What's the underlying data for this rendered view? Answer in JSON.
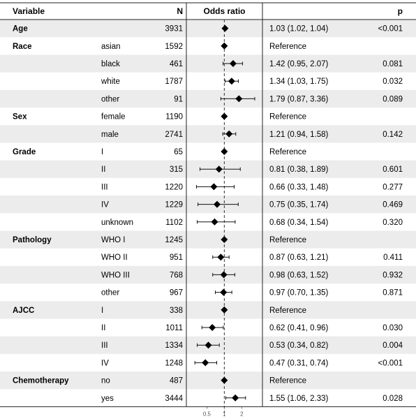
{
  "chart_data": {
    "type": "forest",
    "header": {
      "variable": "Variable",
      "n": "N",
      "plot": "Odds ratio",
      "p": "p"
    },
    "xaxis": {
      "scale": "log",
      "ticks": [
        "0.5",
        "1",
        "2"
      ],
      "tick_values": [
        0.5,
        1,
        2
      ],
      "range": [
        0.24,
        4.2
      ],
      "reference_line": 1
    },
    "rows": [
      {
        "variable": "Age",
        "level": "",
        "n": "3931",
        "or": 1.03,
        "lo": 1.02,
        "hi": 1.04,
        "label": "1.03 (1.02, 1.04)",
        "p": "<0.001"
      },
      {
        "variable": "Race",
        "level": "asian",
        "n": "1592",
        "or": 1,
        "lo": null,
        "hi": null,
        "label": "Reference",
        "p": ""
      },
      {
        "variable": "",
        "level": "black",
        "n": "461",
        "or": 1.42,
        "lo": 0.95,
        "hi": 2.07,
        "label": "1.42 (0.95, 2.07)",
        "p": "0.081"
      },
      {
        "variable": "",
        "level": "white",
        "n": "1787",
        "or": 1.34,
        "lo": 1.03,
        "hi": 1.75,
        "label": "1.34 (1.03, 1.75)",
        "p": "0.032"
      },
      {
        "variable": "",
        "level": "other",
        "n": "91",
        "or": 1.79,
        "lo": 0.87,
        "hi": 3.36,
        "label": "1.79 (0.87, 3.36)",
        "p": "0.089"
      },
      {
        "variable": "Sex",
        "level": "female",
        "n": "1190",
        "or": 1,
        "lo": null,
        "hi": null,
        "label": "Reference",
        "p": ""
      },
      {
        "variable": "",
        "level": "male",
        "n": "2741",
        "or": 1.21,
        "lo": 0.94,
        "hi": 1.58,
        "label": "1.21 (0.94, 1.58)",
        "p": "0.142"
      },
      {
        "variable": "Grade",
        "level": "I",
        "n": "65",
        "or": 1,
        "lo": null,
        "hi": null,
        "label": "Reference",
        "p": ""
      },
      {
        "variable": "",
        "level": "II",
        "n": "315",
        "or": 0.81,
        "lo": 0.38,
        "hi": 1.89,
        "label": "0.81 (0.38, 1.89)",
        "p": "0.601"
      },
      {
        "variable": "",
        "level": "III",
        "n": "1220",
        "or": 0.66,
        "lo": 0.33,
        "hi": 1.48,
        "label": "0.66 (0.33, 1.48)",
        "p": "0.277"
      },
      {
        "variable": "",
        "level": "IV",
        "n": "1229",
        "or": 0.75,
        "lo": 0.35,
        "hi": 1.74,
        "label": "0.75 (0.35, 1.74)",
        "p": "0.469"
      },
      {
        "variable": "",
        "level": "unknown",
        "n": "1102",
        "or": 0.68,
        "lo": 0.34,
        "hi": 1.54,
        "label": "0.68 (0.34, 1.54)",
        "p": "0.320"
      },
      {
        "variable": "Pathology",
        "level": "WHO I",
        "n": "1245",
        "or": 1,
        "lo": null,
        "hi": null,
        "label": "Reference",
        "p": ""
      },
      {
        "variable": "",
        "level": "WHO II",
        "n": "951",
        "or": 0.87,
        "lo": 0.63,
        "hi": 1.21,
        "label": "0.87 (0.63, 1.21)",
        "p": "0.411"
      },
      {
        "variable": "",
        "level": "WHO III",
        "n": "768",
        "or": 0.98,
        "lo": 0.63,
        "hi": 1.52,
        "label": "0.98 (0.63, 1.52)",
        "p": "0.932"
      },
      {
        "variable": "",
        "level": "other",
        "n": "967",
        "or": 0.97,
        "lo": 0.7,
        "hi": 1.35,
        "label": "0.97 (0.70, 1.35)",
        "p": "0.871"
      },
      {
        "variable": "AJCC",
        "level": "I",
        "n": "338",
        "or": 1,
        "lo": null,
        "hi": null,
        "label": "Reference",
        "p": ""
      },
      {
        "variable": "",
        "level": "II",
        "n": "1011",
        "or": 0.62,
        "lo": 0.41,
        "hi": 0.96,
        "label": "0.62 (0.41, 0.96)",
        "p": "0.030"
      },
      {
        "variable": "",
        "level": "III",
        "n": "1334",
        "or": 0.53,
        "lo": 0.34,
        "hi": 0.82,
        "label": "0.53 (0.34, 0.82)",
        "p": "0.004"
      },
      {
        "variable": "",
        "level": "IV",
        "n": "1248",
        "or": 0.47,
        "lo": 0.31,
        "hi": 0.74,
        "label": "0.47 (0.31, 0.74)",
        "p": "<0.001"
      },
      {
        "variable": "Chemotherapy",
        "level": "no",
        "n": "487",
        "or": 1,
        "lo": null,
        "hi": null,
        "label": "Reference",
        "p": ""
      },
      {
        "variable": "",
        "level": "yes",
        "n": "3444",
        "or": 1.55,
        "lo": 1.06,
        "hi": 2.33,
        "label": "1.55 (1.06, 2.33)",
        "p": "0.028"
      }
    ],
    "colors": {
      "stripe": "#ececec",
      "rule": "#222222",
      "marker": "#000000",
      "ci": "#111111",
      "ref_line": "#333333"
    }
  }
}
